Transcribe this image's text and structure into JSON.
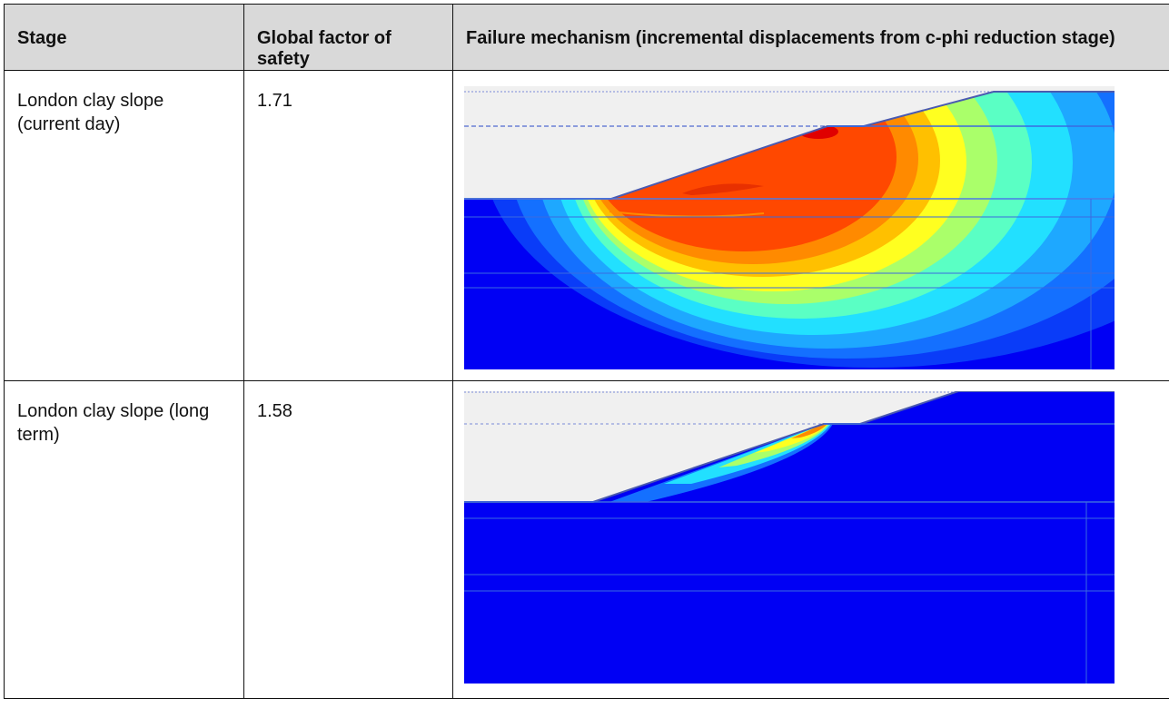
{
  "table": {
    "headers": {
      "stage": "Stage",
      "fos": "Global factor of safety",
      "mechanism": "Failure mechanism (incremental displacements from c-phi reduction stage)"
    },
    "rows": [
      {
        "stage": "London clay slope (current day)",
        "fos": "1.71",
        "mechanism_image": "plaxis-contour-deep-rotational-failure"
      },
      {
        "stage": "London clay slope (long term)",
        "fos": "1.58",
        "mechanism_image": "plaxis-contour-shallow-surface-failure"
      }
    ]
  },
  "colors": {
    "soil": "#0000f4",
    "air": "#f0f0f0",
    "peak": "#e00000",
    "border": "#111111",
    "header_bg": "#d9d9d9"
  }
}
